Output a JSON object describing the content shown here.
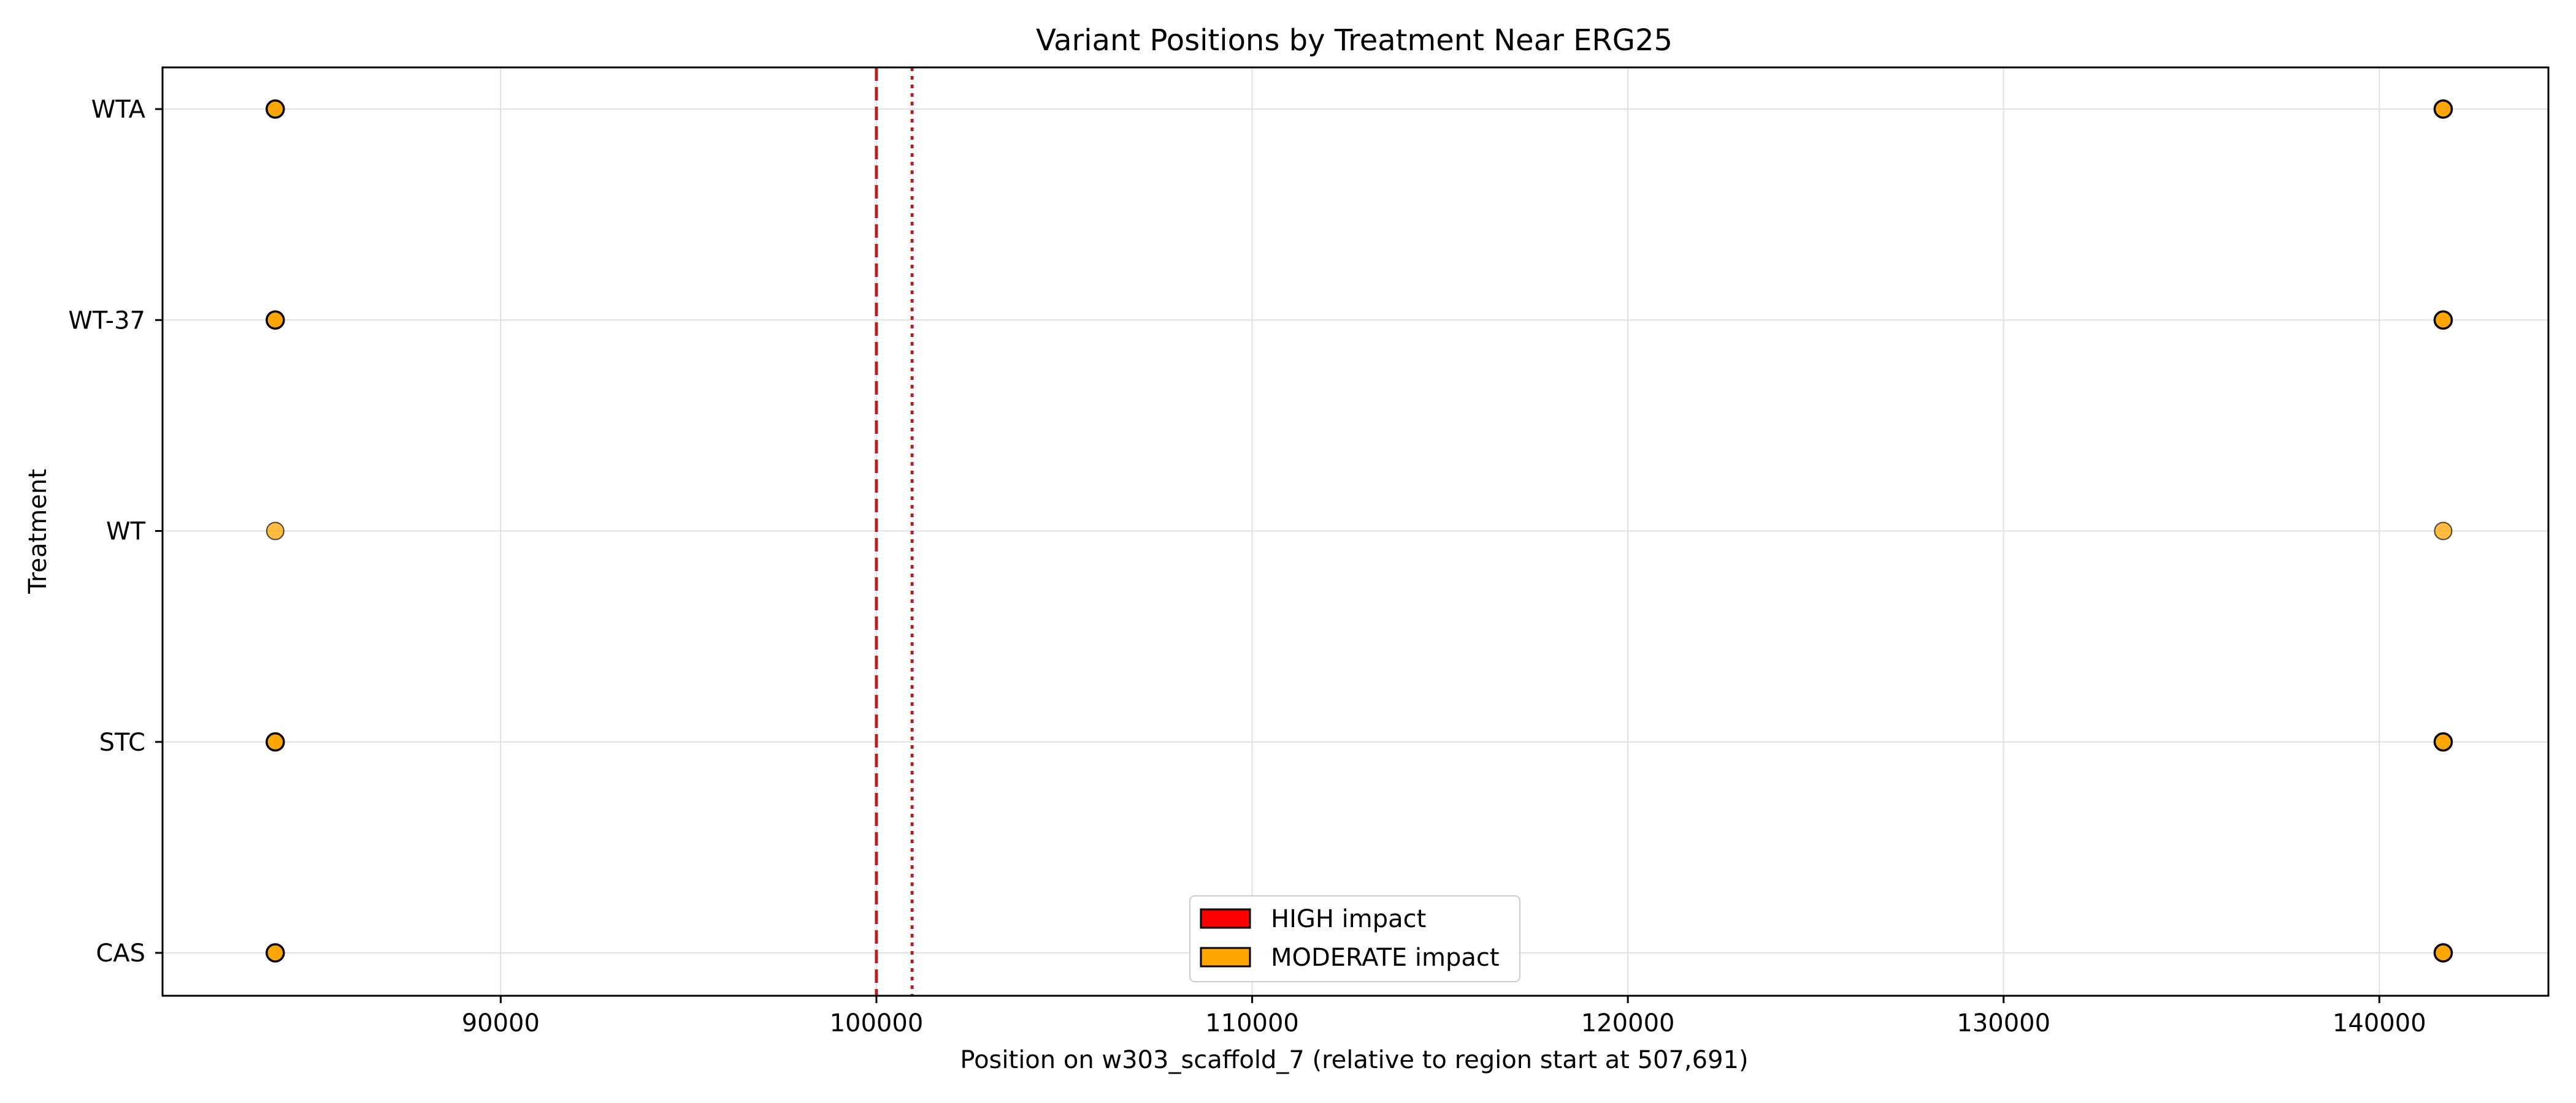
{
  "chart_data": {
    "type": "scatter",
    "title": "Variant Positions by Treatment Near ERG25",
    "xlabel": "Position on w303_scaffold_7 (relative to region start at 507,691)",
    "ylabel": "Treatment",
    "xlim": [
      81000,
      144500
    ],
    "x_ticks": [
      90000,
      100000,
      110000,
      120000,
      130000,
      140000
    ],
    "x_tick_labels": [
      "90000",
      "100000",
      "110000",
      "120000",
      "130000",
      "140000"
    ],
    "categories": [
      "CAS",
      "STC",
      "WT",
      "WT-37",
      "WTA"
    ],
    "grid": true,
    "legend_position": "lower center",
    "legend": [
      {
        "label": "HIGH impact",
        "color": "#ff0000"
      },
      {
        "label": "MODERATE impact",
        "color": "#ffa500"
      }
    ],
    "reference_lines": [
      {
        "x": 100000,
        "style": "dashed",
        "color": "#b22222"
      },
      {
        "x": 100950,
        "style": "dotted",
        "color": "#b22222"
      }
    ],
    "points": [
      {
        "treatment": "WTA",
        "x": 84000,
        "impact": "MODERATE"
      },
      {
        "treatment": "WTA",
        "x": 141700,
        "impact": "MODERATE"
      },
      {
        "treatment": "WT-37",
        "x": 84000,
        "impact": "MODERATE"
      },
      {
        "treatment": "WT-37",
        "x": 141700,
        "impact": "MODERATE"
      },
      {
        "treatment": "WT",
        "x": 84000,
        "impact": "MODERATE"
      },
      {
        "treatment": "WT",
        "x": 141700,
        "impact": "MODERATE"
      },
      {
        "treatment": "STC",
        "x": 84000,
        "impact": "MODERATE"
      },
      {
        "treatment": "STC",
        "x": 141700,
        "impact": "MODERATE"
      },
      {
        "treatment": "CAS",
        "x": 84000,
        "impact": "MODERATE"
      },
      {
        "treatment": "CAS",
        "x": 141700,
        "impact": "MODERATE"
      }
    ]
  }
}
